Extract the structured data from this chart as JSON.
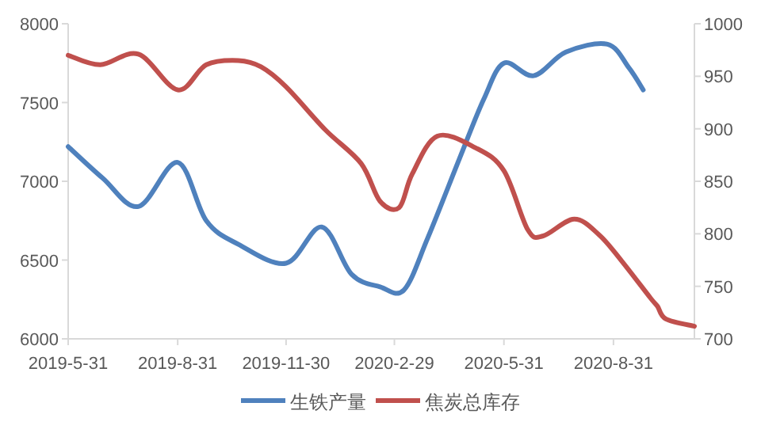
{
  "chart_data": {
    "type": "line",
    "xlim": [
      "2019-05-31",
      "2020-11-07"
    ],
    "xticks": [
      {
        "value": "2019-05-31",
        "label": "2019-5-31"
      },
      {
        "value": "2019-08-31",
        "label": "2019-8-31"
      },
      {
        "value": "2019-11-30",
        "label": "2019-11-30"
      },
      {
        "value": "2020-02-29",
        "label": "2020-2-29"
      },
      {
        "value": "2020-05-31",
        "label": "2020-5-31"
      },
      {
        "value": "2020-08-31",
        "label": "2020-8-31"
      }
    ],
    "ylim": [
      6000,
      8000
    ],
    "yticks": [
      6000,
      6500,
      7000,
      7500,
      8000
    ],
    "y2lim": [
      700,
      1000
    ],
    "y2ticks": [
      700,
      750,
      800,
      850,
      900,
      950,
      1000
    ],
    "grid": false,
    "legend": "bottom",
    "marker": "none",
    "line_style": "solid",
    "series": [
      {
        "name": "生铁产量",
        "color": "#4f81bd",
        "x": [
          "2019-05-31",
          "2019-06-29",
          "2019-07-29",
          "2019-08-31",
          "2019-09-24",
          "2019-10-21",
          "2019-11-30",
          "2019-12-30",
          "2020-01-24",
          "2020-02-17",
          "2020-03-08",
          "2020-03-28",
          "2020-04-24",
          "2020-05-14",
          "2020-05-31",
          "2020-06-25",
          "2020-07-22",
          "2020-08-26",
          "2020-09-13",
          "2020-09-25"
        ],
        "values": [
          7220,
          7020,
          6840,
          7120,
          6750,
          6600,
          6480,
          6710,
          6410,
          6330,
          6310,
          6640,
          7150,
          7520,
          7750,
          7670,
          7820,
          7870,
          7720,
          7580
        ]
      },
      {
        "name": "焦炭总库存",
        "color": "#c0504d",
        "axis": "y2",
        "x": [
          "2019-05-31",
          "2019-06-27",
          "2019-07-29",
          "2019-08-31",
          "2019-09-24",
          "2019-10-21",
          "2019-11-09",
          "2019-11-30",
          "2020-01-02",
          "2020-02-01",
          "2020-02-17",
          "2020-03-04",
          "2020-03-15",
          "2020-04-05",
          "2020-05-07",
          "2020-05-31",
          "2020-06-20",
          "2020-07-03",
          "2020-07-29",
          "2020-08-19",
          "2020-09-07",
          "2020-10-01",
          "2020-10-07",
          "2020-10-14",
          "2020-11-07"
        ],
        "values": [
          970,
          961,
          971,
          937,
          961,
          965,
          959,
          940,
          899,
          867,
          831,
          825,
          857,
          893,
          882,
          860,
          804,
          798,
          814,
          799,
          774,
          739,
          731,
          719,
          712
        ]
      }
    ]
  }
}
